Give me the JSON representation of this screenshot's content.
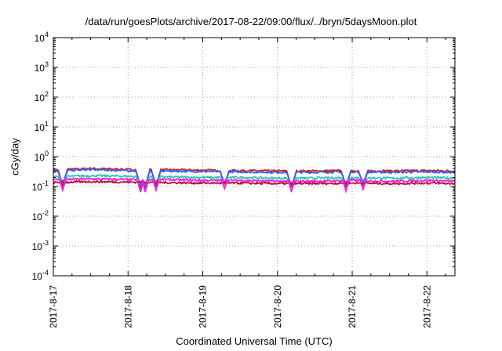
{
  "chart_data": {
    "type": "line",
    "title": "/data/run/goesPlots/archive/2017-08-22/09:00/flux/../bryn/5daysMoon.plot",
    "xlabel": "Coordinated Universal Time (UTC)",
    "ylabel": "cGy/day",
    "x_range": [
      "2017-8-17",
      "2017-8-22 09:00"
    ],
    "x_tick_labels": [
      "2017-8-17",
      "2017-8-18",
      "2017-8-19",
      "2017-8-20",
      "2017-8-21",
      "2017-8-22"
    ],
    "y_scale": "log",
    "ylim": [
      0.0001,
      10000
    ],
    "y_tick_labels": [
      {
        "base": "10",
        "exp": "-4"
      },
      {
        "base": "10",
        "exp": "-3"
      },
      {
        "base": "10",
        "exp": "-2"
      },
      {
        "base": "10",
        "exp": "-1"
      },
      {
        "base": "10",
        "exp": "0"
      },
      {
        "base": "10",
        "exp": "1"
      },
      {
        "base": "10",
        "exp": "2"
      },
      {
        "base": "10",
        "exp": "3"
      },
      {
        "base": "10",
        "exp": "4"
      }
    ],
    "grid": true,
    "legend": "none",
    "series": [
      {
        "color": "#e8141a",
        "level": 0.36,
        "x": [
          "2017-8-17 00:00",
          "2017-8-17 12:00",
          "2017-8-18 00:00",
          "2017-8-18 12:00",
          "2017-8-19 00:00",
          "2017-8-19 12:00",
          "2017-8-20 00:00",
          "2017-8-20 12:00",
          "2017-8-21 00:00",
          "2017-8-21 12:00",
          "2017-8-22 00:00",
          "2017-8-22 09:00"
        ],
        "values": [
          0.36,
          0.4,
          0.37,
          0.36,
          0.35,
          0.34,
          0.33,
          0.33,
          0.34,
          0.33,
          0.34,
          0.33
        ]
      },
      {
        "color": "#2e62e8",
        "level": 0.33,
        "x": [
          "2017-8-17 00:00",
          "2017-8-17 12:00",
          "2017-8-18 00:00",
          "2017-8-18 12:00",
          "2017-8-19 00:00",
          "2017-8-19 12:00",
          "2017-8-20 00:00",
          "2017-8-20 12:00",
          "2017-8-21 00:00",
          "2017-8-21 12:00",
          "2017-8-22 00:00",
          "2017-8-22 09:00"
        ],
        "values": [
          0.33,
          0.37,
          0.34,
          0.33,
          0.32,
          0.31,
          0.3,
          0.3,
          0.31,
          0.3,
          0.31,
          0.3
        ]
      },
      {
        "color": "#2ec9b0",
        "level": 0.21,
        "x": [
          "2017-8-17 00:00",
          "2017-8-17 12:00",
          "2017-8-18 00:00",
          "2017-8-18 12:00",
          "2017-8-19 00:00",
          "2017-8-19 12:00",
          "2017-8-20 00:00",
          "2017-8-20 12:00",
          "2017-8-21 00:00",
          "2017-8-21 12:00",
          "2017-8-22 00:00",
          "2017-8-22 09:00"
        ],
        "values": [
          0.21,
          0.23,
          0.22,
          0.21,
          0.2,
          0.2,
          0.19,
          0.19,
          0.2,
          0.19,
          0.2,
          0.19
        ]
      },
      {
        "color": "#f020e6",
        "level": 0.17,
        "x": [
          "2017-8-17 00:00",
          "2017-8-17 12:00",
          "2017-8-18 00:00",
          "2017-8-18 12:00",
          "2017-8-19 00:00",
          "2017-8-19 12:00",
          "2017-8-20 00:00",
          "2017-8-20 12:00",
          "2017-8-21 00:00",
          "2017-8-21 12:00",
          "2017-8-22 00:00",
          "2017-8-22 09:00"
        ],
        "values": [
          0.17,
          0.18,
          0.17,
          0.17,
          0.16,
          0.16,
          0.15,
          0.15,
          0.16,
          0.15,
          0.16,
          0.15
        ]
      },
      {
        "color": "#b8143c",
        "level": 0.135,
        "x": [
          "2017-8-17 00:00",
          "2017-8-17 12:00",
          "2017-8-18 00:00",
          "2017-8-18 12:00",
          "2017-8-19 00:00",
          "2017-8-19 12:00",
          "2017-8-20 00:00",
          "2017-8-20 12:00",
          "2017-8-21 00:00",
          "2017-8-21 12:00",
          "2017-8-22 00:00",
          "2017-8-22 09:00"
        ],
        "values": [
          0.135,
          0.145,
          0.14,
          0.135,
          0.13,
          0.13,
          0.125,
          0.125,
          0.13,
          0.125,
          0.13,
          0.125
        ]
      }
    ],
    "dips": [
      {
        "x": "2017-8-17 03:00",
        "min": 0.075
      },
      {
        "x": "2017-8-18 04:00",
        "min": 0.065
      },
      {
        "x": "2017-8-18 05:30",
        "min": 0.065
      },
      {
        "x": "2017-8-18 09:00",
        "min": 0.075
      },
      {
        "x": "2017-8-19 07:00",
        "min": 0.085
      },
      {
        "x": "2017-8-20 04:30",
        "min": 0.065
      },
      {
        "x": "2017-8-20 22:00",
        "min": 0.07
      },
      {
        "x": "2017-8-21 03:30",
        "min": 0.08
      }
    ]
  }
}
